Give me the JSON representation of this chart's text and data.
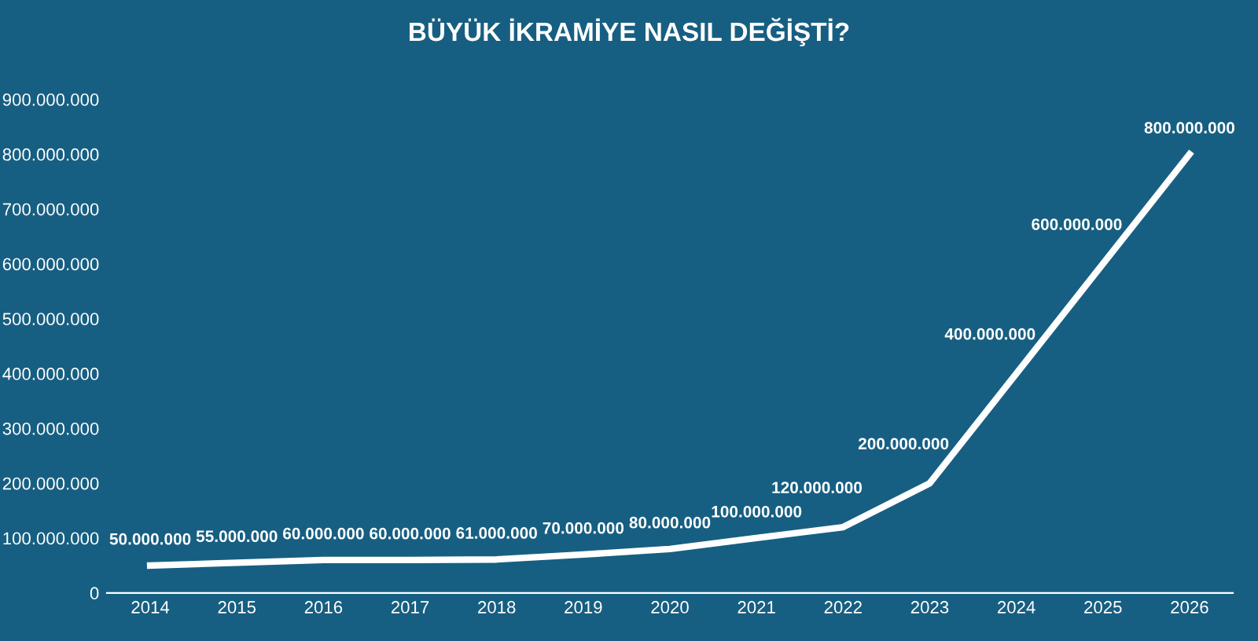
{
  "chart_data": {
    "type": "line",
    "title": "BÜYÜK İKRAMİYE NASIL DEĞİŞTİ?",
    "categories": [
      "2014",
      "2015",
      "2016",
      "2017",
      "2018",
      "2019",
      "2020",
      "2021",
      "2022",
      "2023",
      "2024",
      "2025",
      "2026"
    ],
    "series": [
      {
        "color": "#ffffff",
        "values": [
          50000000,
          55000000,
          60000000,
          60000000,
          61000000,
          70000000,
          80000000,
          100000000,
          120000000,
          200000000,
          400000000,
          600000000,
          800000000
        ],
        "value_labels": [
          "50.000.000",
          "55.000.000",
          "60.000.000",
          "60.000.000",
          "61.000.000",
          "70.000.000",
          "80.000.000",
          "100.000.000",
          "120.000.000",
          "200.000.000",
          "400.000.000",
          "600.000.000",
          "800.000.000"
        ]
      }
    ],
    "ylim": [
      0,
      900000000
    ],
    "yticks": [
      0,
      {
        "value": 100000000,
        "label": "100.000.000"
      },
      {
        "value": 200000000,
        "label": "200.000.000"
      },
      {
        "value": 300000000,
        "label": "300.000.000"
      },
      {
        "value": 400000000,
        "label": "400.000.000"
      },
      {
        "value": 500000000,
        "label": "500.000.000"
      },
      {
        "value": 600000000,
        "label": "600.000.000"
      },
      {
        "value": 700000000,
        "label": "700.000.000"
      },
      {
        "value": 800000000,
        "label": "800.000.000"
      },
      {
        "value": 900000000,
        "label": "900.000.000"
      }
    ],
    "grid": false,
    "marker": "none",
    "line_style": "solid"
  }
}
